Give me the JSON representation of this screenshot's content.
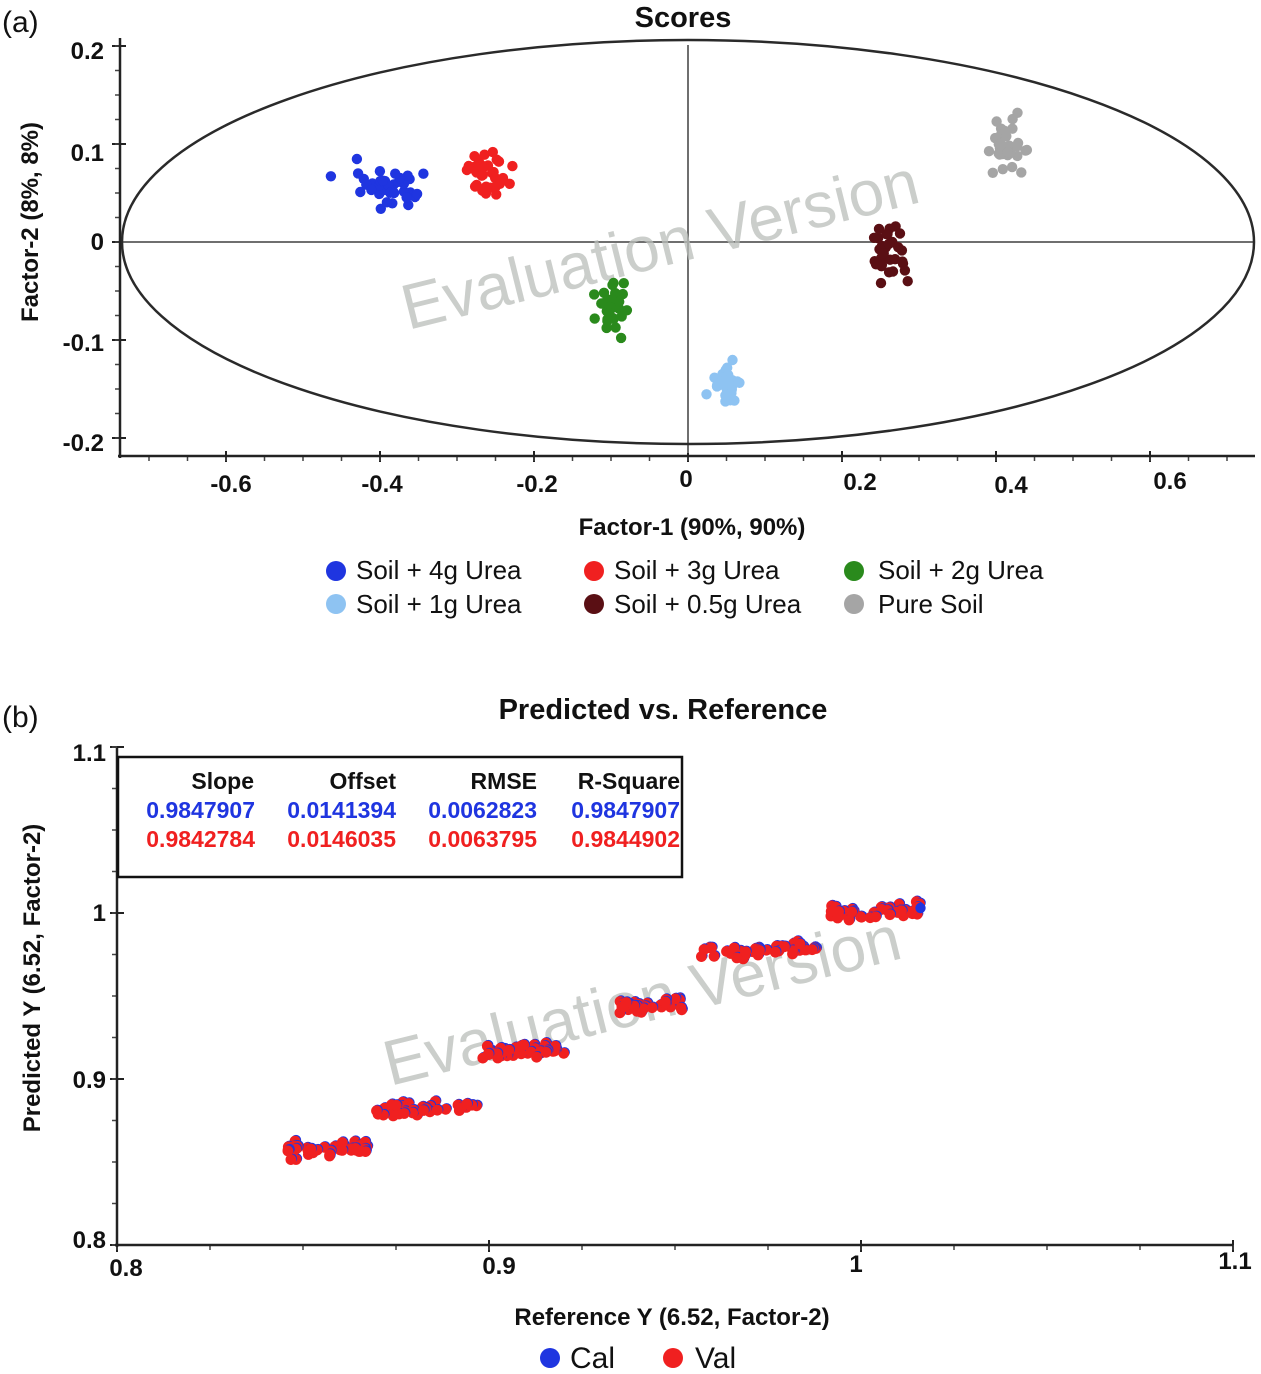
{
  "panels": {
    "a": "(a)",
    "b": "(b)"
  },
  "watermark": "Evaluation Version",
  "chart_data": [
    {
      "type": "scatter",
      "title": "Scores",
      "xlabel": "Factor-1 (90%, 90%)",
      "ylabel": "Factor-2 (8%, 8%)",
      "xlim": [
        -0.72,
        0.72
      ],
      "ylim": [
        -0.22,
        0.22
      ],
      "xticks": [
        -0.6,
        -0.4,
        -0.2,
        0,
        0.2,
        0.4,
        0.6
      ],
      "xtick_labels": [
        "-0.6",
        "-0.4",
        "-0.2",
        "0",
        "0.2",
        "0.4",
        "0.6"
      ],
      "yticks": [
        0.2,
        0.1,
        0,
        -0.1,
        -0.2
      ],
      "ytick_labels": [
        "0.2",
        "0.1",
        "0",
        "-0.1",
        "-0.2"
      ],
      "ellipse": {
        "center": [
          0,
          0
        ],
        "rx": 0.72,
        "ry": 0.2
      },
      "series": [
        {
          "name": "Soil + 4g Urea",
          "color": "#1f35e0",
          "cx": -0.39,
          "cy": 0.055,
          "sx": 0.028,
          "sy": 0.013,
          "n": 36
        },
        {
          "name": "Soil + 3g Urea",
          "color": "#f02020",
          "cx": -0.26,
          "cy": 0.07,
          "sx": 0.014,
          "sy": 0.01,
          "n": 34
        },
        {
          "name": "Soil + 2g Urea",
          "color": "#2a8a1c",
          "cx": -0.1,
          "cy": -0.065,
          "sx": 0.01,
          "sy": 0.013,
          "n": 30
        },
        {
          "name": "Soil + 1g Urea",
          "color": "#8ec3f2",
          "cx": 0.05,
          "cy": -0.145,
          "sx": 0.01,
          "sy": 0.01,
          "n": 30
        },
        {
          "name": "Soil + 0.5g Urea",
          "color": "#5a0f14",
          "cx": 0.265,
          "cy": -0.012,
          "sx": 0.013,
          "sy": 0.013,
          "n": 32
        },
        {
          "name": "Pure Soil",
          "color": "#a5a5a5",
          "cx": 0.415,
          "cy": 0.095,
          "sx": 0.012,
          "sy": 0.015,
          "n": 30
        }
      ],
      "legend": "bottom"
    },
    {
      "type": "scatter",
      "title": "Predicted vs. Reference",
      "xlabel": "Reference Y (6.52, Factor-2)",
      "ylabel": "Predicted Y (6.52, Factor-2)",
      "xlim": [
        0.8,
        1.1
      ],
      "ylim": [
        0.8,
        1.1
      ],
      "xticks": [
        0.8,
        0.9,
        1,
        1.1
      ],
      "xtick_labels": [
        "0.8",
        "0.9",
        "1",
        "1.1"
      ],
      "yticks": [
        1.1,
        1,
        0.9,
        0.8
      ],
      "ytick_labels": [
        "1.1",
        "1",
        "0.9",
        "0.8"
      ],
      "series": [
        {
          "name": "Cal",
          "color": "#1f35e0"
        },
        {
          "name": "Val",
          "color": "#f02020"
        }
      ],
      "clusters": [
        {
          "x0": 0.845,
          "x1": 0.868,
          "y": 0.858,
          "n": 45
        },
        {
          "x0": 0.869,
          "x1": 0.897,
          "y": 0.882,
          "n": 40
        },
        {
          "x0": 0.898,
          "x1": 0.921,
          "y": 0.917,
          "n": 40
        },
        {
          "x0": 0.935,
          "x1": 0.952,
          "y": 0.944,
          "n": 40
        },
        {
          "x0": 0.957,
          "x1": 0.988,
          "y": 0.977,
          "n": 40
        },
        {
          "x0": 0.99,
          "x1": 1.016,
          "y": 1.0,
          "n": 42
        }
      ],
      "stats": {
        "headers": [
          "Slope",
          "Offset",
          "RMSE",
          "R-Square"
        ],
        "cal": [
          "0.9847907",
          "0.0141394",
          "0.0062823",
          "0.9847907"
        ],
        "val": [
          "0.9842784",
          "0.0146035",
          "0.0063795",
          "0.9844902"
        ]
      },
      "legend": "bottom"
    }
  ]
}
